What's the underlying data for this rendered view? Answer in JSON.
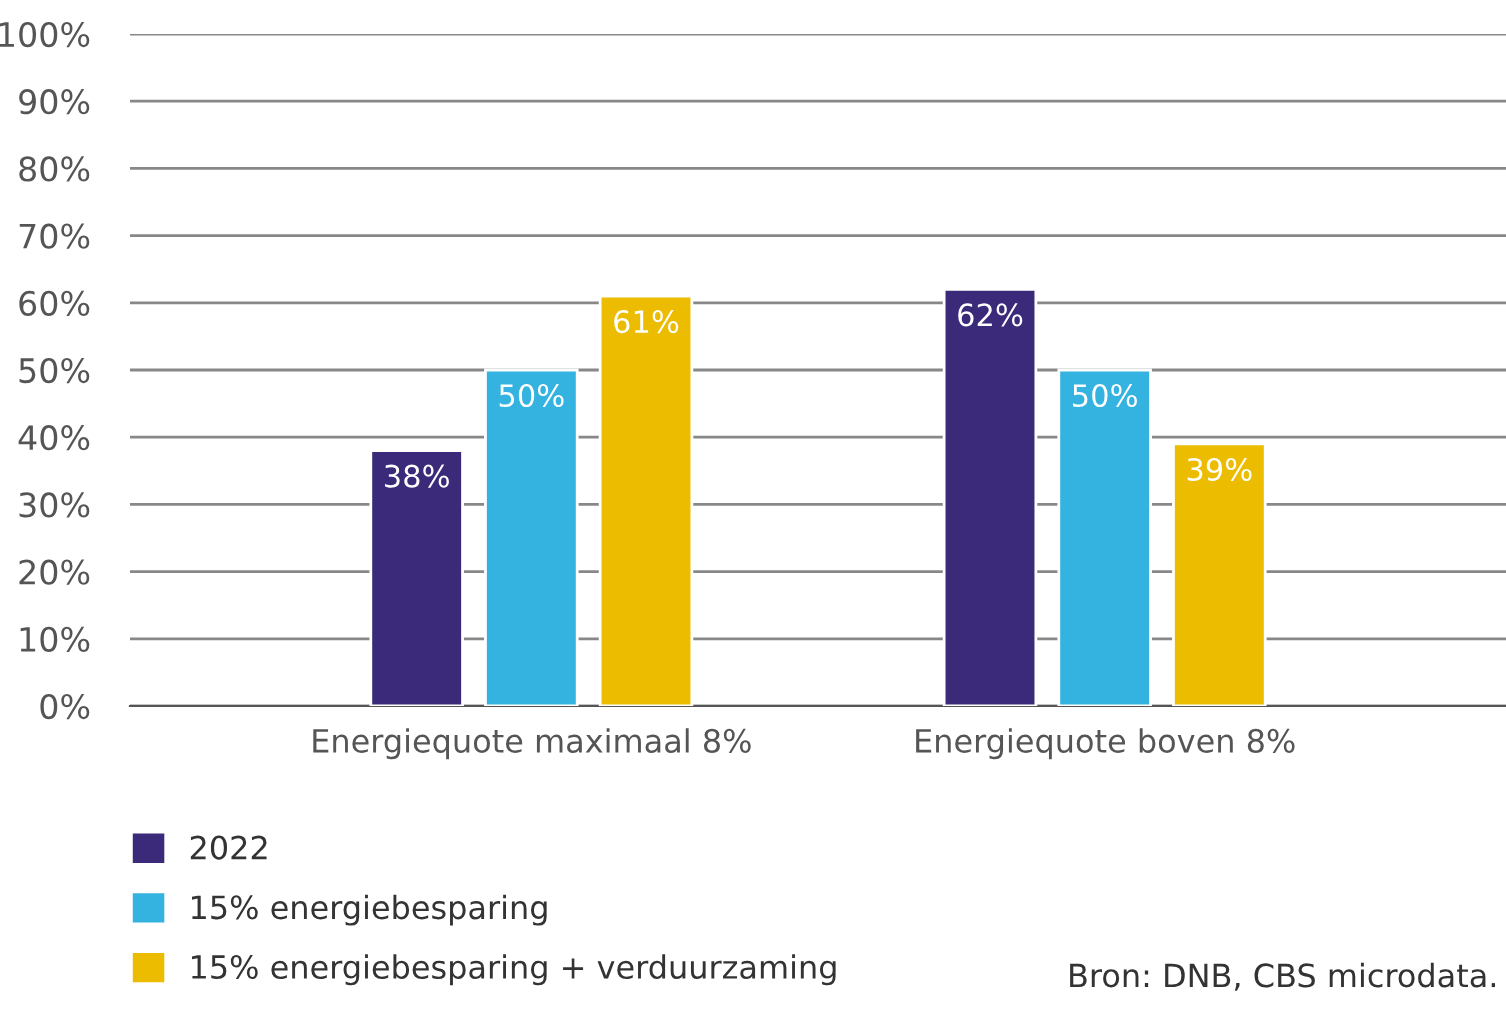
{
  "chart_data": {
    "type": "bar",
    "categories": [
      "Energiequote maximaal 8%",
      "Energiequote boven 8%"
    ],
    "series": [
      {
        "name": "2022",
        "color": "#3b2a7a",
        "values": [
          38,
          62
        ],
        "value_labels": [
          "38%",
          "62%"
        ]
      },
      {
        "name": "15% energiebesparing",
        "color": "#35b3e0",
        "values": [
          50,
          50
        ],
        "value_labels": [
          "50%",
          "50%"
        ]
      },
      {
        "name": "15% energiebesparing + verduurzaming",
        "color": "#ecbc00",
        "values": [
          61,
          39
        ],
        "value_labels": [
          "61%",
          "39%"
        ]
      }
    ],
    "ylim": [
      0,
      100
    ],
    "yticks": [
      {
        "value": 0,
        "label": "0%"
      },
      {
        "value": 10,
        "label": "10%"
      },
      {
        "value": 20,
        "label": "20%"
      },
      {
        "value": 30,
        "label": "30%"
      },
      {
        "value": 40,
        "label": "40%"
      },
      {
        "value": 50,
        "label": "50%"
      },
      {
        "value": 60,
        "label": "60%"
      },
      {
        "value": 70,
        "label": "70%"
      },
      {
        "value": 80,
        "label": "80%"
      },
      {
        "value": 90,
        "label": "90%"
      },
      {
        "value": 100,
        "label": "100%"
      }
    ],
    "grid": "y",
    "legend": "bottom left",
    "annotations": [
      "Bron: DNB, CBS microdata."
    ]
  }
}
